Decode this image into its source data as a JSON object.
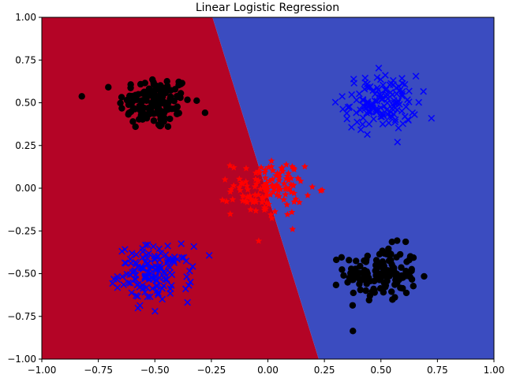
{
  "chart_data": {
    "type": "scatter",
    "title": "Linear Logistic Regression",
    "xlabel": "",
    "ylabel": "",
    "xlim": [
      -1.0,
      1.0
    ],
    "ylim": [
      -1.0,
      1.0
    ],
    "xticks": [
      "−1.00",
      "−0.75",
      "−0.50",
      "−0.25",
      "0.00",
      "0.25",
      "0.50",
      "0.75",
      "1.00"
    ],
    "yticks": [
      "−1.00",
      "−0.75",
      "−0.50",
      "−0.25",
      "0.00",
      "0.25",
      "0.50",
      "0.75",
      "1.00"
    ],
    "grid": false,
    "legend": "none",
    "decision_regions": {
      "boundary_line": {
        "x_at_y_top": -0.245,
        "y_top": 1.0,
        "x_at_y_bottom": 0.225,
        "y_bottom": -1.0
      },
      "left_color": "#b40426",
      "right_color": "#3b4cc0"
    },
    "clusters": [
      {
        "marker": "circle",
        "color": "#000000",
        "center": [
          -0.5,
          0.5
        ],
        "spread": [
          0.08,
          0.08
        ],
        "count": 140
      },
      {
        "marker": "circle",
        "color": "#000000",
        "center": [
          0.5,
          -0.5
        ],
        "spread": [
          0.08,
          0.08
        ],
        "count": 140
      },
      {
        "marker": "x",
        "color": "#0000ff",
        "center": [
          0.5,
          0.5
        ],
        "spread": [
          0.08,
          0.08
        ],
        "count": 140
      },
      {
        "marker": "x",
        "color": "#0000ff",
        "center": [
          -0.5,
          -0.5
        ],
        "spread": [
          0.08,
          0.08
        ],
        "count": 140
      },
      {
        "marker": "star",
        "color": "#ff0000",
        "center": [
          0.0,
          0.0
        ],
        "spread": [
          0.08,
          0.08
        ],
        "count": 130
      }
    ]
  }
}
